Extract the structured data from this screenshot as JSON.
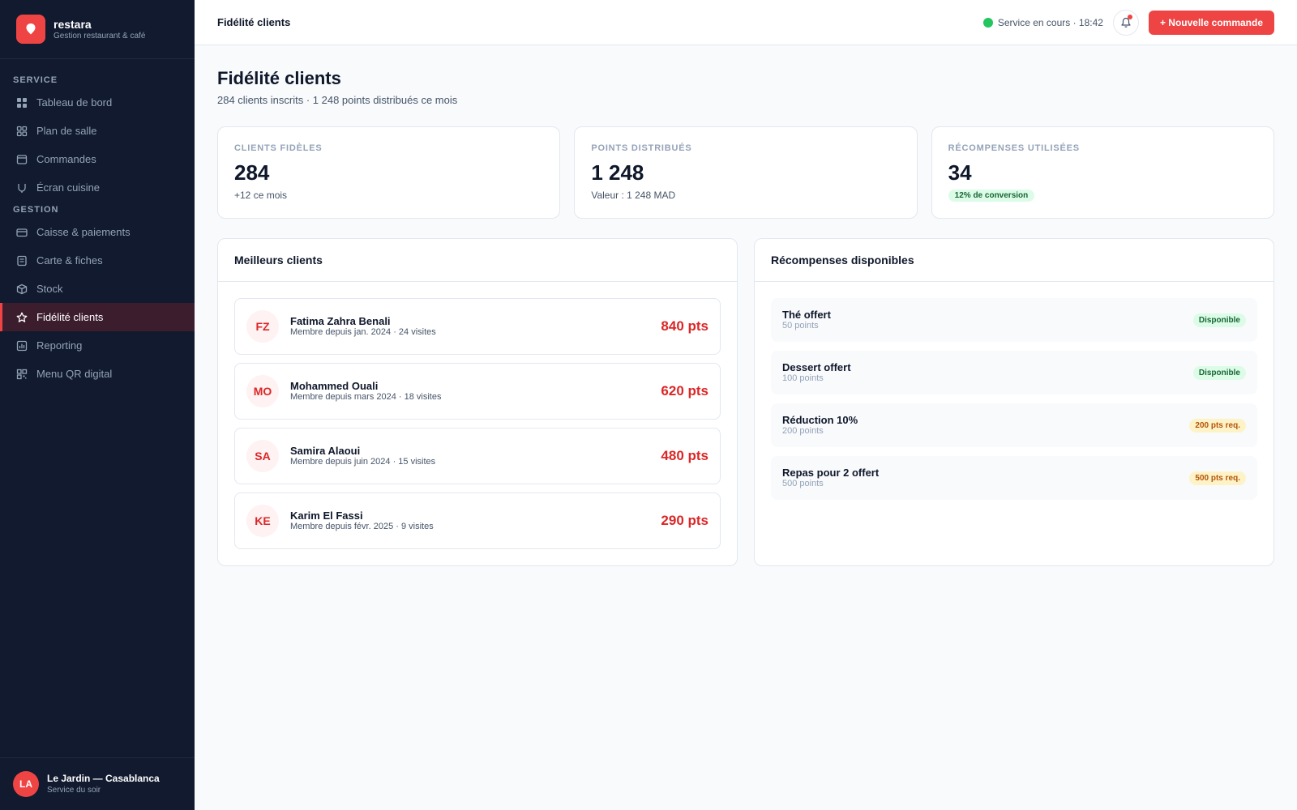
{
  "brand": {
    "name": "restara",
    "subtitle": "Gestion restaurant & café"
  },
  "sidebar": {
    "sections": [
      {
        "label": "SERVICE",
        "items": [
          {
            "label": "Tableau de bord",
            "icon": "grid-icon"
          },
          {
            "label": "Plan de salle",
            "icon": "floor-plan-icon"
          },
          {
            "label": "Commandes",
            "icon": "orders-icon"
          },
          {
            "label": "Écran cuisine",
            "icon": "kitchen-icon"
          }
        ]
      },
      {
        "label": "GESTION",
        "items": [
          {
            "label": "Caisse & paiements",
            "icon": "card-icon"
          },
          {
            "label": "Carte & fiches",
            "icon": "menu-card-icon"
          },
          {
            "label": "Stock",
            "icon": "box-icon"
          },
          {
            "label": "Fidélité clients",
            "icon": "star-icon",
            "active": true
          },
          {
            "label": "Reporting",
            "icon": "chart-icon"
          },
          {
            "label": "Menu QR digital",
            "icon": "qr-icon"
          }
        ]
      }
    ],
    "footer": {
      "initials": "LA",
      "name": "Le Jardin — Casablanca",
      "subtitle": "Service du soir"
    }
  },
  "topbar": {
    "title": "Fidélité clients",
    "status": "Service en cours · 18:42",
    "new_order_label": "+ Nouvelle commande"
  },
  "page": {
    "title": "Fidélité clients",
    "subtitle": "284 clients inscrits · 1 248 points distribués ce mois"
  },
  "stats": [
    {
      "label": "CLIENTS FIDÈLES",
      "value": "284",
      "sub": "+12 ce mois"
    },
    {
      "label": "POINTS DISTRIBUÉS",
      "value": "1 248",
      "sub": "Valeur : 1 248 MAD"
    },
    {
      "label": "RÉCOMPENSES UTILISÉES",
      "value": "34",
      "badge": "12% de conversion"
    }
  ],
  "top_clients": {
    "title": "Meilleurs clients",
    "items": [
      {
        "initials": "FZ",
        "name": "Fatima Zahra Benali",
        "meta": "Membre depuis jan. 2024 · 24 visites",
        "points": "840 pts"
      },
      {
        "initials": "MO",
        "name": "Mohammed Ouali",
        "meta": "Membre depuis mars 2024 · 18 visites",
        "points": "620 pts"
      },
      {
        "initials": "SA",
        "name": "Samira Alaoui",
        "meta": "Membre depuis juin 2024 · 15 visites",
        "points": "480 pts"
      },
      {
        "initials": "KE",
        "name": "Karim El Fassi",
        "meta": "Membre depuis févr. 2025 · 9 visites",
        "points": "290 pts"
      }
    ]
  },
  "rewards": {
    "title": "Récompenses disponibles",
    "items": [
      {
        "name": "Thé offert",
        "points": "50 points",
        "badge": "Disponible",
        "status": "ok"
      },
      {
        "name": "Dessert offert",
        "points": "100 points",
        "badge": "Disponible",
        "status": "ok"
      },
      {
        "name": "Réduction 10%",
        "points": "200 points",
        "badge": "200 pts req.",
        "status": "req"
      },
      {
        "name": "Repas pour 2 offert",
        "points": "500 points",
        "badge": "500 pts req.",
        "status": "req"
      }
    ]
  },
  "colors": {
    "accent": "#ef4444",
    "sidebar_bg": "#111a2e",
    "success": "#22c55e"
  }
}
